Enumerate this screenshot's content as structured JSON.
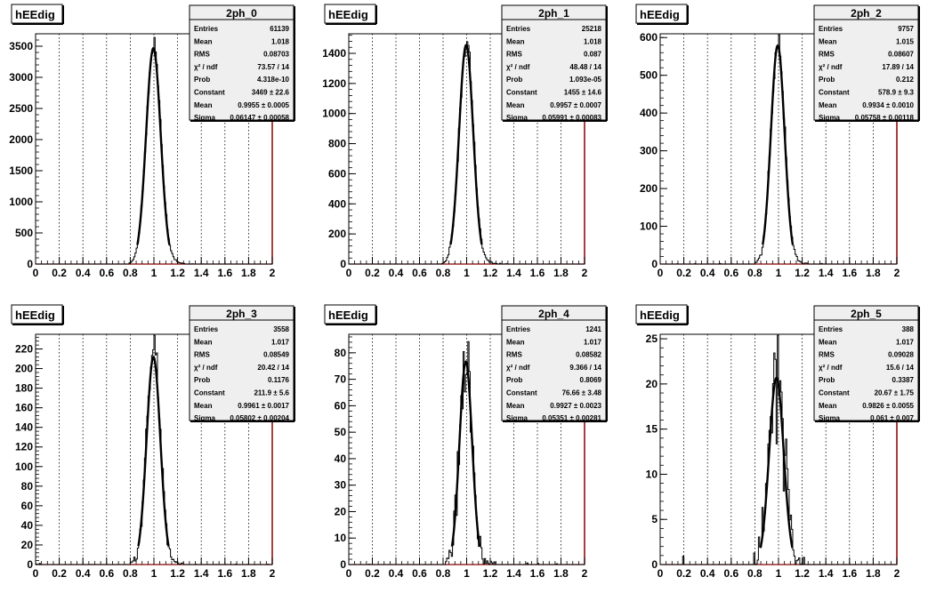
{
  "axis": {
    "x_ticks": [
      "0",
      "0.2",
      "0.4",
      "0.6",
      "0.8",
      "1",
      "1.2",
      "1.4",
      "1.6",
      "1.8",
      "2"
    ],
    "xlim": [
      0,
      2
    ],
    "grid_x": "dotted vertical",
    "grid_y": false
  },
  "stat_labels": {
    "entries": "Entries",
    "mean": "Mean",
    "rms": "RMS",
    "chi2": "χ² / ndf",
    "prob": "Prob",
    "constant": "Constant",
    "fit_mean": "Mean",
    "sigma": "Sigma"
  },
  "colors": {
    "hist": "#000000",
    "frame": "#000000",
    "right_axis": "#8b0000"
  },
  "chart_data": [
    {
      "type": "histogram",
      "title": "hEEdig",
      "name": "2ph_0",
      "ylim": [
        0,
        3700
      ],
      "y_ticks": [
        0,
        500,
        1000,
        1500,
        2000,
        2500,
        3000,
        3500
      ],
      "fit": {
        "constant": 3469,
        "mean": 0.9955,
        "sigma": 0.06147
      },
      "stats": {
        "entries": "61139",
        "mean": "1.018",
        "rms": "0.08703",
        "chi2": "73.57 / 14",
        "prob": "4.318e-10",
        "constant": "3469 ± 22.6",
        "fit_mean": "0.9955 ± 0.0005",
        "sigma": "0.06147 ± 0.00058"
      }
    },
    {
      "type": "histogram",
      "title": "hEEdig",
      "name": "2ph_1",
      "ylim": [
        0,
        1530
      ],
      "y_ticks": [
        0,
        200,
        400,
        600,
        800,
        1000,
        1200,
        1400
      ],
      "fit": {
        "constant": 1455,
        "mean": 0.9957,
        "sigma": 0.05991
      },
      "stats": {
        "entries": "25218",
        "mean": "1.018",
        "rms": "0.087",
        "chi2": "48.48 / 14",
        "prob": "1.093e-05",
        "constant": "1455 ± 14.6",
        "fit_mean": "0.9957 ± 0.0007",
        "sigma": "0.05991 ± 0.00083"
      }
    },
    {
      "type": "histogram",
      "title": "hEEdig",
      "name": "2ph_2",
      "ylim": [
        0,
        610
      ],
      "y_ticks": [
        0,
        100,
        200,
        300,
        400,
        500,
        600
      ],
      "fit": {
        "constant": 578.9,
        "mean": 0.9934,
        "sigma": 0.05758
      },
      "stats": {
        "entries": "9757",
        "mean": "1.015",
        "rms": "0.08607",
        "chi2": "17.89 / 14",
        "prob": "0.212",
        "constant": "578.9 ± 9.3",
        "fit_mean": "0.9934 ± 0.0010",
        "sigma": "0.05758 ± 0.00118"
      }
    },
    {
      "type": "histogram",
      "title": "hEEdig",
      "name": "2ph_3",
      "ylim": [
        0,
        235
      ],
      "y_ticks": [
        0,
        20,
        40,
        60,
        80,
        100,
        120,
        140,
        160,
        180,
        200,
        220
      ],
      "fit": {
        "constant": 211.9,
        "mean": 0.9961,
        "sigma": 0.05802
      },
      "stats": {
        "entries": "3558",
        "mean": "1.017",
        "rms": "0.08549",
        "chi2": "20.42 / 14",
        "prob": "0.1176",
        "constant": "211.9 ± 5.6",
        "fit_mean": "0.9961 ± 0.0017",
        "sigma": "0.05802 ± 0.00204"
      }
    },
    {
      "type": "histogram",
      "title": "hEEdig",
      "name": "2ph_4",
      "ylim": [
        0,
        87
      ],
      "y_ticks": [
        0,
        10,
        20,
        30,
        40,
        50,
        60,
        70,
        80
      ],
      "fit": {
        "constant": 76.66,
        "mean": 0.9927,
        "sigma": 0.05351
      },
      "stats": {
        "entries": "1241",
        "mean": "1.017",
        "rms": "0.08582",
        "chi2": "9.366 / 14",
        "prob": "0.8069",
        "constant": "76.66 ± 3.48",
        "fit_mean": "0.9927 ± 0.0023",
        "sigma": "0.05351 ± 0.00281"
      }
    },
    {
      "type": "histogram",
      "title": "hEEdig",
      "name": "2ph_5",
      "ylim": [
        0,
        25.5
      ],
      "y_ticks": [
        0,
        5,
        10,
        15,
        20,
        25
      ],
      "fit": {
        "constant": 20.67,
        "mean": 0.9826,
        "sigma": 0.061
      },
      "stats": {
        "entries": "388",
        "mean": "1.017",
        "rms": "0.09028",
        "chi2": "15.6 / 14",
        "prob": "0.3387",
        "constant": "20.67 ± 1.75",
        "fit_mean": "0.9826 ± 0.0055",
        "sigma": "0.061 ± 0.007"
      }
    }
  ]
}
